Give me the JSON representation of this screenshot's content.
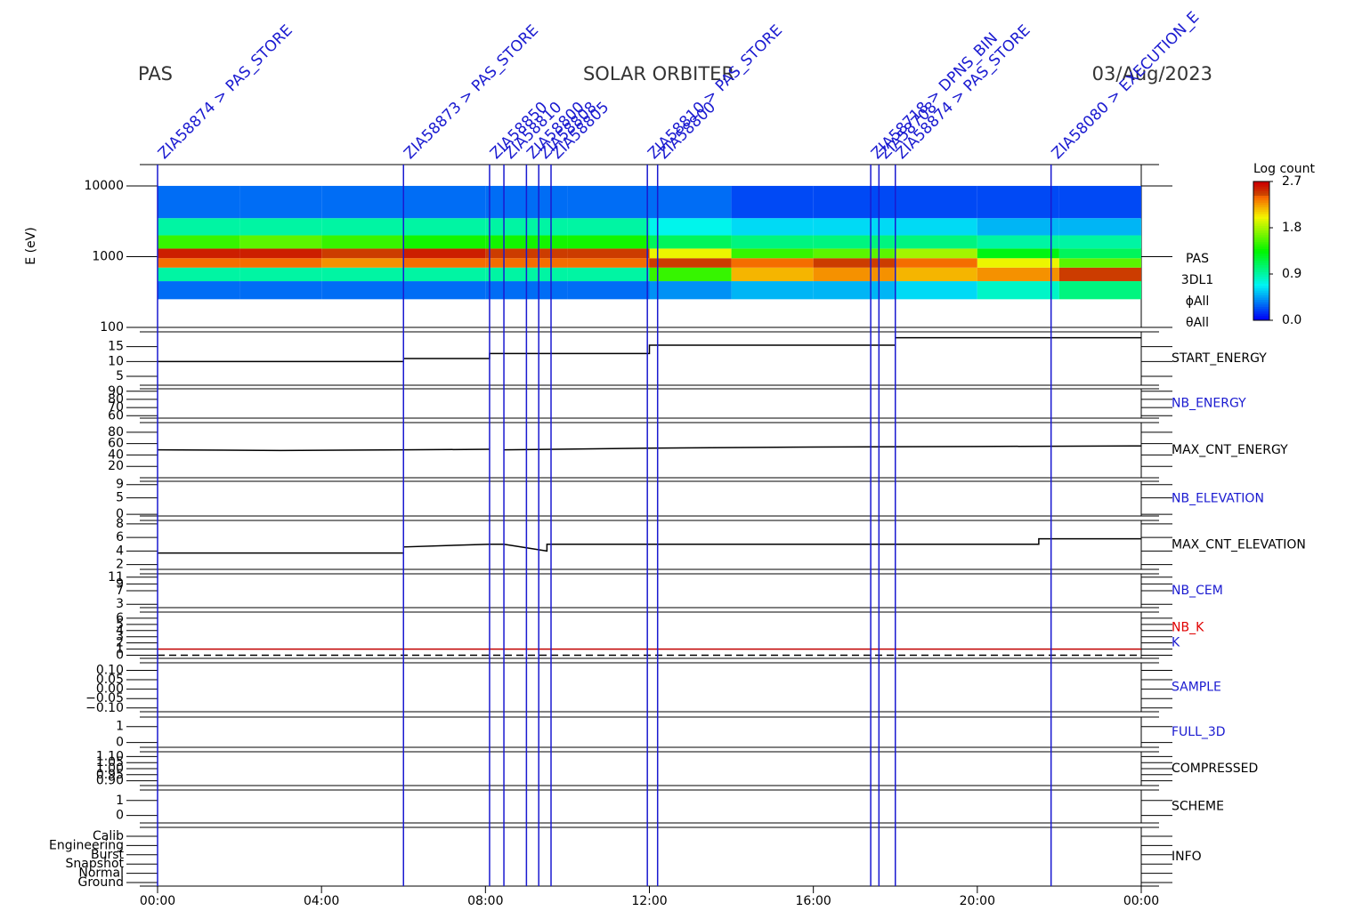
{
  "header": {
    "left": "PAS",
    "center": "SOLAR ORBITER",
    "right": "03/Aug/2023"
  },
  "time_axis": {
    "xlim": [
      0,
      24
    ],
    "xticks": [
      {
        "value": 0,
        "label": "00:00"
      },
      {
        "value": 4,
        "label": "04:00"
      },
      {
        "value": 8,
        "label": "08:00"
      },
      {
        "value": 12,
        "label": "12:00"
      },
      {
        "value": 16,
        "label": "16:00"
      },
      {
        "value": 20,
        "label": "20:00"
      },
      {
        "value": 24,
        "label": "00:00"
      }
    ]
  },
  "events": {
    "color": "#1a1ad0",
    "items": [
      {
        "x": 0,
        "label": "ZIA58874 > PAS_STORE"
      },
      {
        "x": 6.0,
        "label": "ZIA58873 > PAS_STORE"
      },
      {
        "x": 8.1,
        "label": "ZIA58850"
      },
      {
        "x": 8.45,
        "label": "ZIA58810"
      },
      {
        "x": 9.0,
        "label": "ZIA58800"
      },
      {
        "x": 9.3,
        "label": "ZIA58808"
      },
      {
        "x": 9.6,
        "label": "ZIA58805"
      },
      {
        "x": 11.95,
        "label": "ZIA58810 > PAS_STORE"
      },
      {
        "x": 12.2,
        "label": "ZIA58800"
      },
      {
        "x": 17.4,
        "label": "ZIA58718 > DPNS_BIN"
      },
      {
        "x": 17.6,
        "label": "ZIA58708"
      },
      {
        "x": 18.0,
        "label": "ZIA58874 > PAS_STORE"
      },
      {
        "x": 21.8,
        "label": "ZIA58080 > EXECUTION_E"
      }
    ]
  },
  "chart_data": [
    {
      "type": "heatmap",
      "ylabel": "E (eV)",
      "log_y": true,
      "ylim": [
        100,
        20000
      ],
      "yticks": [
        100,
        1000,
        10000
      ],
      "labels": [
        "PAS",
        "3DL1",
        "ϕAll",
        "θAll"
      ],
      "label_colors": [
        "#000000",
        "#000000",
        "#000000",
        "#000000"
      ],
      "x_edges": [
        0,
        2,
        4,
        6,
        8,
        10,
        12,
        14,
        16,
        18,
        20,
        22,
        24
      ],
      "y_edges": [
        250,
        450,
        700,
        950,
        1300,
        2000,
        3500,
        10000
      ],
      "z": [
        [
          0.3,
          0.3,
          0.3,
          0.3,
          0.3,
          0.3,
          0.4,
          0.5,
          0.5,
          0.6,
          0.8,
          1.0
        ],
        [
          0.9,
          0.9,
          0.9,
          0.9,
          0.9,
          0.9,
          1.5,
          2.2,
          2.3,
          2.2,
          2.3,
          2.5
        ],
        [
          2.4,
          2.4,
          2.3,
          2.4,
          2.4,
          2.4,
          2.5,
          2.4,
          2.5,
          2.4,
          2.0,
          1.6
        ],
        [
          2.6,
          2.6,
          2.5,
          2.6,
          2.5,
          2.5,
          2.0,
          1.5,
          1.6,
          1.8,
          1.3,
          1.1
        ],
        [
          1.5,
          1.6,
          1.5,
          1.4,
          1.4,
          1.4,
          1.1,
          1.0,
          1.0,
          1.0,
          0.9,
          0.9
        ],
        [
          0.9,
          0.9,
          0.9,
          0.9,
          0.9,
          0.9,
          0.7,
          0.6,
          0.6,
          0.6,
          0.5,
          0.5
        ],
        [
          0.3,
          0.3,
          0.3,
          0.3,
          0.3,
          0.3,
          0.3,
          0.2,
          0.2,
          0.2,
          0.2,
          0.2
        ]
      ],
      "colorbar": {
        "title": "Log count",
        "lim": [
          0,
          2.7
        ],
        "ticks": [
          {
            "value": 0,
            "label": "0.0"
          },
          0.9,
          1.8,
          2.7
        ]
      }
    },
    {
      "type": "line",
      "labels": [
        "START_ENERGY"
      ],
      "label_colors": [
        "#000000"
      ],
      "ylim": [
        2,
        20
      ],
      "yticks": [
        5,
        10,
        15
      ],
      "series": [
        {
          "color": "#000000",
          "x": [
            0,
            6,
            6,
            8.1,
            8.1,
            12,
            12,
            18,
            18,
            24
          ],
          "values": [
            10,
            10,
            11,
            11,
            12.7,
            12.7,
            15.5,
            15.5,
            18,
            18
          ]
        }
      ]
    },
    {
      "type": "line",
      "labels": [
        "NB_ENERGY"
      ],
      "label_colors": [
        "#1a1ad0"
      ],
      "ylim": [
        57,
        93
      ],
      "yticks": [
        60,
        70,
        80,
        90
      ],
      "series": []
    },
    {
      "type": "line",
      "labels": [
        "MAX_CNT_ENERGY"
      ],
      "label_colors": [
        "#000000"
      ],
      "ylim": [
        0,
        97
      ],
      "yticks": [
        20,
        40,
        60,
        80
      ],
      "series": [
        {
          "color": "#000000",
          "x": [
            0,
            3,
            6,
            8.1,
            8.3,
            8.45,
            12,
            16,
            20,
            24
          ],
          "values": [
            49,
            48,
            49,
            50,
            null,
            49,
            52,
            54,
            55,
            56
          ]
        }
      ]
    },
    {
      "type": "line",
      "labels": [
        "NB_ELEVATION"
      ],
      "label_colors": [
        "#1a1ad0"
      ],
      "ylim": [
        -0.5,
        10
      ],
      "yticks": [
        0,
        5,
        9
      ],
      "series": []
    },
    {
      "type": "line",
      "labels": [
        "MAX_CNT_ELEVATION"
      ],
      "label_colors": [
        "#000000"
      ],
      "ylim": [
        1.3,
        8.5
      ],
      "yticks": [
        2,
        4,
        6,
        8
      ],
      "series": [
        {
          "color": "#000000",
          "x": [
            0,
            6,
            6,
            8.1,
            8.45,
            9.5,
            9.5,
            21.5,
            21.5,
            24
          ],
          "values": [
            3.7,
            3.7,
            4.6,
            5,
            5,
            4,
            5,
            5,
            5.8,
            5.8
          ]
        }
      ]
    },
    {
      "type": "line",
      "labels": [
        "NB_CEM"
      ],
      "label_colors": [
        "#1a1ad0"
      ],
      "ylim": [
        2,
        12
      ],
      "yticks": [
        3,
        7,
        9,
        11
      ],
      "series": []
    },
    {
      "type": "line",
      "labels": [
        "NB_K",
        "K"
      ],
      "label_colors": [
        "#e00000",
        "#1a1ad0"
      ],
      "ylim": [
        -0.5,
        7
      ],
      "yticks": [
        0,
        1,
        2,
        3,
        4,
        5,
        6
      ],
      "series": [
        {
          "color": "#c00000",
          "x": [
            0,
            24
          ],
          "values": [
            1,
            1
          ]
        },
        {
          "color": "#000000",
          "dashed": true,
          "x": [
            0,
            24
          ],
          "values": [
            0,
            0
          ]
        }
      ]
    },
    {
      "type": "line",
      "labels": [
        "SAMPLE"
      ],
      "label_colors": [
        "#1a1ad0"
      ],
      "ylim": [
        -0.12,
        0.14
      ],
      "yticks": [
        {
          "value": -0.1,
          "label": "−0.10"
        },
        {
          "value": -0.05,
          "label": "−0.05"
        },
        {
          "value": 0,
          "label": "0.00"
        },
        0.05,
        {
          "value": 0.1,
          "label": "0.10"
        }
      ],
      "series": []
    },
    {
      "type": "line",
      "labels": [
        "FULL_3D"
      ],
      "label_colors": [
        "#1a1ad0"
      ],
      "ylim": [
        -0.3,
        1.6
      ],
      "yticks": [
        0,
        1
      ],
      "series": []
    },
    {
      "type": "line",
      "labels": [
        "COMPRESSED"
      ],
      "label_colors": [
        "#000000"
      ],
      "ylim": [
        0.86,
        1.14
      ],
      "yticks": [
        {
          "value": 0.9,
          "label": "0.90"
        },
        0.95,
        {
          "value": 1,
          "label": "1.00"
        },
        1.05,
        {
          "value": 1.1,
          "label": "1.10"
        }
      ],
      "series": []
    },
    {
      "type": "line",
      "labels": [
        "SCHEME"
      ],
      "label_colors": [
        "#000000"
      ],
      "ylim": [
        -0.5,
        1.7
      ],
      "yticks": [
        0,
        1
      ],
      "series": []
    },
    {
      "type": "category",
      "labels": [
        "INFO"
      ],
      "label_colors": [
        "#000000"
      ],
      "categories": [
        "Calib",
        "Engineering",
        "Burst",
        "Snapshot",
        "Normal",
        "Ground"
      ]
    }
  ]
}
